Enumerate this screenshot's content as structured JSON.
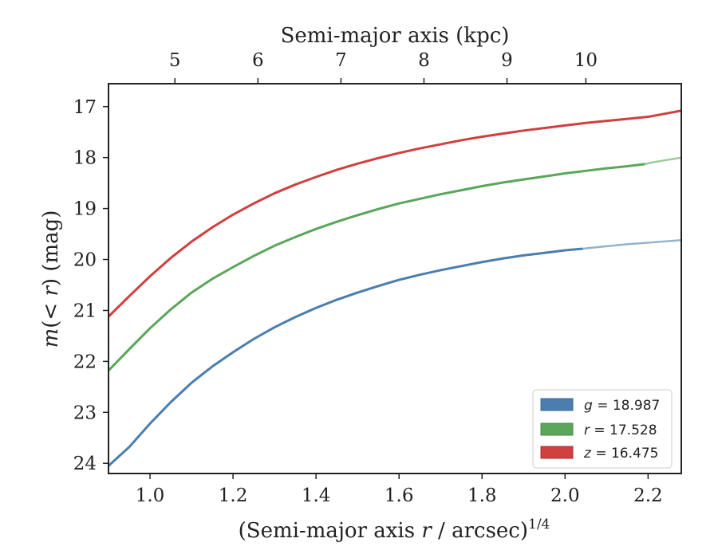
{
  "chart_data": {
    "type": "line",
    "xlabel_main": "(Semi-major axis ",
    "xlabel_var": "r",
    "xlabel_rest": " / arcsec)",
    "xlabel_exp": "1/4",
    "xlabel_top": "Semi-major axis (kpc)",
    "ylabel_main": "m",
    "ylabel_mid": "(< ",
    "ylabel_var": "r",
    "ylabel_rest": ") (mag)",
    "xlim": [
      0.9,
      2.28
    ],
    "ylim": [
      24.2,
      16.55
    ],
    "y_inverted": true,
    "xticks": [
      "1.0",
      "1.2",
      "1.4",
      "1.6",
      "1.8",
      "2.0",
      "2.2"
    ],
    "xtick_values": [
      1.0,
      1.2,
      1.4,
      1.6,
      1.8,
      2.0,
      2.2
    ],
    "yticks": [
      "17",
      "18",
      "19",
      "20",
      "21",
      "22",
      "23",
      "24"
    ],
    "ytick_values": [
      17,
      18,
      19,
      20,
      21,
      22,
      23,
      24
    ],
    "top_ticks": [
      "5",
      "6",
      "7",
      "8",
      "9",
      "10"
    ],
    "top_tick_positions": [
      1.06,
      1.26,
      1.46,
      1.66,
      1.86,
      2.05
    ],
    "grid": false,
    "legend_position": "lower-right",
    "series": [
      {
        "name_var": "g",
        "name_val": " = 18.987",
        "color": "#4a7eaf",
        "solid_until": 2.04,
        "x": [
          0.9,
          0.95,
          1.0,
          1.05,
          1.1,
          1.15,
          1.2,
          1.25,
          1.3,
          1.35,
          1.4,
          1.45,
          1.5,
          1.55,
          1.6,
          1.65,
          1.7,
          1.75,
          1.8,
          1.85,
          1.9,
          1.95,
          2.0,
          2.04,
          2.1,
          2.15,
          2.2,
          2.28
        ],
        "y": [
          24.05,
          23.68,
          23.22,
          22.8,
          22.42,
          22.1,
          21.82,
          21.56,
          21.33,
          21.13,
          20.95,
          20.79,
          20.65,
          20.52,
          20.4,
          20.3,
          20.21,
          20.13,
          20.05,
          19.98,
          19.92,
          19.87,
          19.82,
          19.79,
          19.74,
          19.7,
          19.67,
          19.62
        ]
      },
      {
        "name_var": "r",
        "name_val": " = 17.528",
        "color": "#5aa65a",
        "solid_until": 2.19,
        "x": [
          0.9,
          0.95,
          1.0,
          1.05,
          1.1,
          1.15,
          1.2,
          1.25,
          1.3,
          1.35,
          1.4,
          1.45,
          1.5,
          1.55,
          1.6,
          1.65,
          1.7,
          1.75,
          1.8,
          1.85,
          1.9,
          1.95,
          2.0,
          2.05,
          2.1,
          2.15,
          2.19,
          2.22,
          2.28
        ],
        "y": [
          22.18,
          21.76,
          21.35,
          20.98,
          20.65,
          20.38,
          20.15,
          19.93,
          19.73,
          19.56,
          19.4,
          19.26,
          19.13,
          19.01,
          18.9,
          18.81,
          18.72,
          18.64,
          18.56,
          18.49,
          18.43,
          18.37,
          18.31,
          18.26,
          18.21,
          18.17,
          18.13,
          18.08,
          18.0
        ]
      },
      {
        "name_var": "z",
        "name_val": " = 16.475",
        "color": "#d13f3f",
        "solid_until": 2.28,
        "x": [
          0.9,
          0.95,
          1.0,
          1.05,
          1.1,
          1.15,
          1.2,
          1.25,
          1.3,
          1.35,
          1.4,
          1.45,
          1.5,
          1.55,
          1.6,
          1.65,
          1.7,
          1.75,
          1.8,
          1.85,
          1.9,
          1.95,
          2.0,
          2.05,
          2.1,
          2.15,
          2.2,
          2.28
        ],
        "y": [
          21.12,
          20.72,
          20.33,
          19.97,
          19.65,
          19.37,
          19.12,
          18.9,
          18.7,
          18.53,
          18.38,
          18.24,
          18.12,
          18.01,
          17.91,
          17.82,
          17.74,
          17.66,
          17.59,
          17.53,
          17.47,
          17.42,
          17.37,
          17.32,
          17.28,
          17.24,
          17.2,
          17.08
        ]
      }
    ]
  }
}
